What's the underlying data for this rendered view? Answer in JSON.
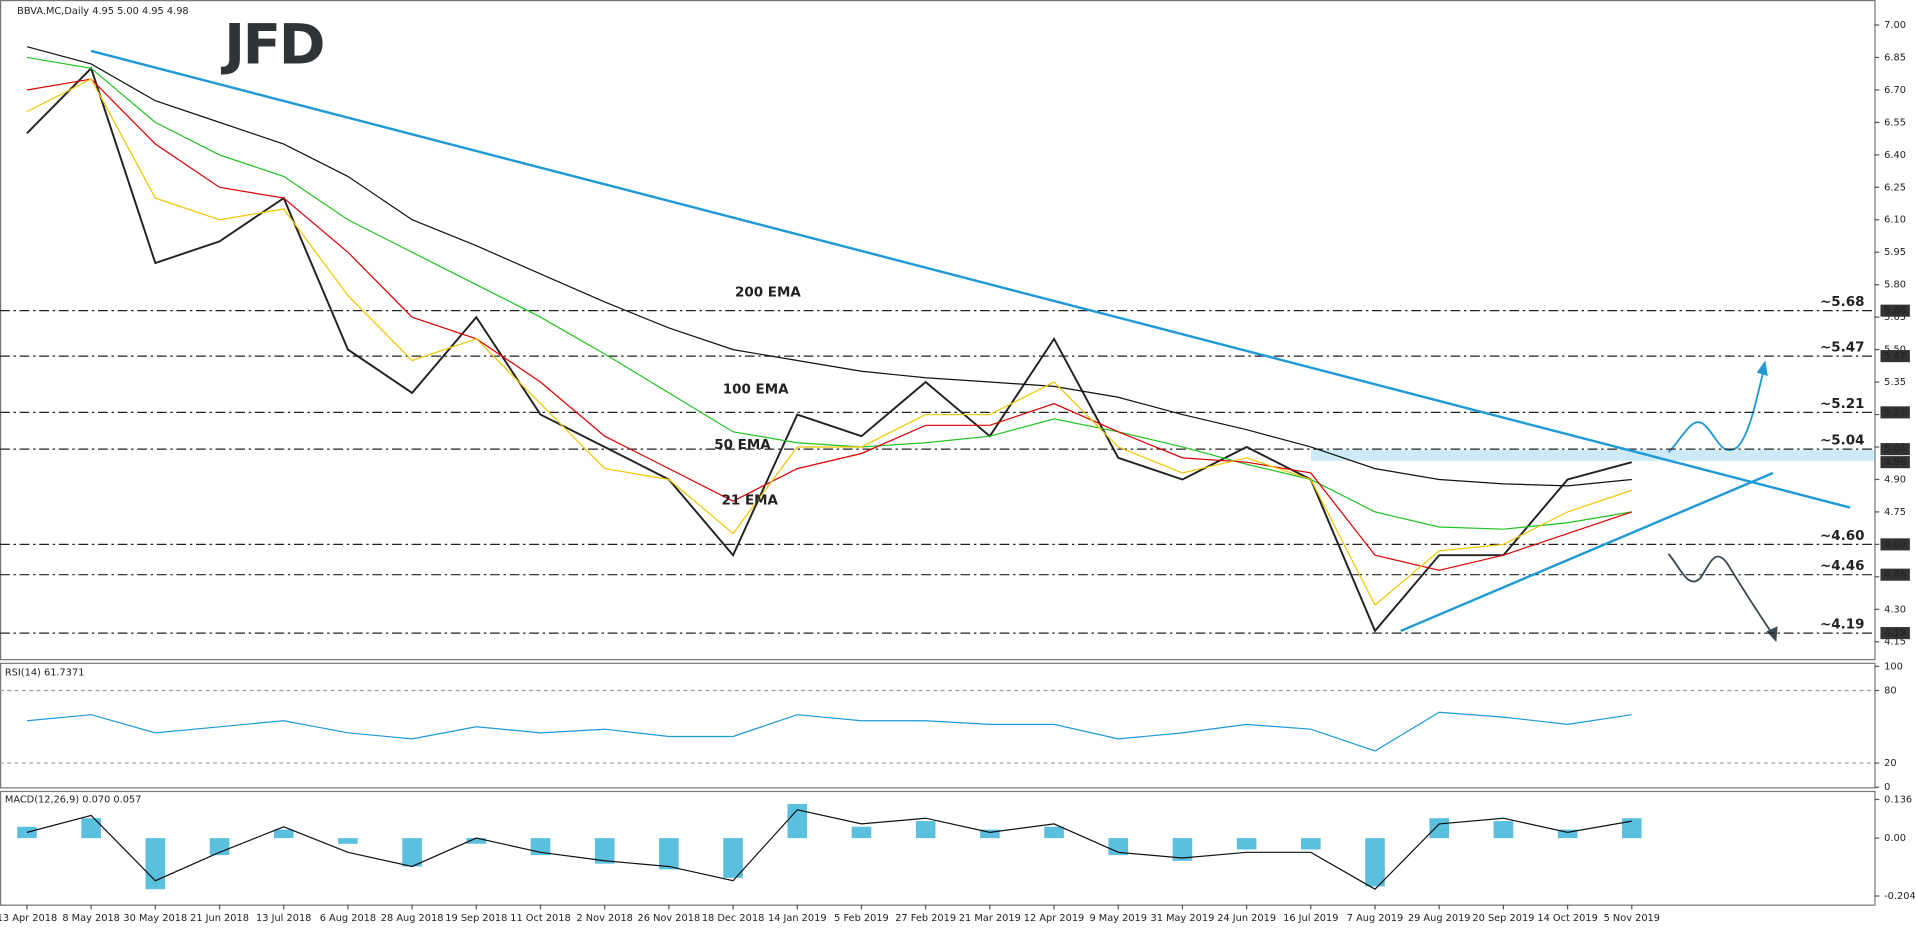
{
  "chart_data": [
    {
      "type": "line",
      "title": "BBVA.MC,Daily  4.95 5.00 4.95 4.98",
      "logo": "JFD",
      "categories": [
        "13 Apr 2018",
        "8 May 2018",
        "30 May 2018",
        "21 Jun 2018",
        "13 Jul 2018",
        "6 Aug 2018",
        "28 Aug 2018",
        "19 Sep 2018",
        "11 Oct 2018",
        "2 Nov 2018",
        "26 Nov 2018",
        "18 Dec 2018",
        "14 Jan 2019",
        "5 Feb 2019",
        "27 Feb 2019",
        "21 Mar 2019",
        "12 Apr 2019",
        "9 May 2019",
        "31 May 2019",
        "24 Jun 2019",
        "16 Jul 2019",
        "7 Aug 2019",
        "29 Aug 2019",
        "20 Sep 2019",
        "14 Oct 2019",
        "5 Nov 2019"
      ],
      "series": [
        {
          "color": "#222222",
          "values": [
            6.5,
            6.8,
            5.9,
            6.0,
            6.2,
            5.5,
            5.3,
            5.65,
            5.2,
            5.05,
            4.9,
            4.55,
            5.2,
            5.1,
            5.35,
            5.1,
            5.55,
            5.0,
            4.9,
            5.05,
            4.9,
            4.2,
            4.55,
            4.55,
            4.9,
            4.98
          ]
        },
        {
          "name": "200 EMA",
          "color": "#111111",
          "values": [
            6.9,
            6.82,
            6.65,
            6.55,
            6.45,
            6.3,
            6.1,
            5.98,
            5.85,
            5.72,
            5.6,
            5.5,
            5.45,
            5.4,
            5.37,
            5.35,
            5.33,
            5.28,
            5.2,
            5.13,
            5.05,
            4.95,
            4.9,
            4.88,
            4.87,
            4.9
          ]
        },
        {
          "name": "100 EMA",
          "color": "#22c322",
          "values": [
            6.85,
            6.8,
            6.55,
            6.4,
            6.3,
            6.1,
            5.95,
            5.8,
            5.65,
            5.48,
            5.3,
            5.12,
            5.07,
            5.05,
            5.07,
            5.1,
            5.18,
            5.12,
            5.05,
            4.97,
            4.9,
            4.75,
            4.68,
            4.67,
            4.7,
            4.75
          ]
        },
        {
          "name": "50 EMA",
          "color": "#e00000",
          "values": [
            6.7,
            6.75,
            6.45,
            6.25,
            6.2,
            5.95,
            5.65,
            5.55,
            5.35,
            5.1,
            4.95,
            4.8,
            4.95,
            5.02,
            5.15,
            5.15,
            5.25,
            5.12,
            5.0,
            4.98,
            4.93,
            4.55,
            4.48,
            4.55,
            4.65,
            4.75
          ]
        },
        {
          "name": "21 EMA",
          "color": "#f0c800",
          "values": [
            6.6,
            6.75,
            6.2,
            6.1,
            6.15,
            5.75,
            5.45,
            5.55,
            5.25,
            4.95,
            4.9,
            4.65,
            5.05,
            5.05,
            5.2,
            5.2,
            5.35,
            5.05,
            4.93,
            5.0,
            4.9,
            4.32,
            4.57,
            4.6,
            4.75,
            4.85
          ]
        }
      ],
      "ylim": [
        4.07,
        7.11
      ],
      "yticks": [
        {
          "value": 7.0,
          "label": "7.00"
        },
        {
          "value": 6.85,
          "label": "6.85"
        },
        {
          "value": 6.7,
          "label": "6.70"
        },
        {
          "value": 6.55,
          "label": "6.55"
        },
        {
          "value": 6.4,
          "label": "6.40"
        },
        {
          "value": 6.25,
          "label": "6.25"
        },
        {
          "value": 6.1,
          "label": "6.10"
        },
        {
          "value": 5.95,
          "label": "5.95"
        },
        {
          "value": 5.8,
          "label": "5.80"
        },
        {
          "value": 5.65,
          "label": "5.65"
        },
        {
          "value": 5.5,
          "label": "5.50"
        },
        {
          "value": 5.35,
          "label": "5.35"
        },
        {
          "value": 5.2,
          "label": "5.20"
        },
        {
          "value": 5.05,
          "label": "5.05"
        },
        {
          "value": 4.9,
          "label": "4.90"
        },
        {
          "value": 4.75,
          "label": "4.75"
        },
        {
          "value": 4.6,
          "label": "4.60"
        },
        {
          "value": 4.45,
          "label": "4.45"
        },
        {
          "value": 4.3,
          "label": "4.30"
        },
        {
          "value": 4.15,
          "label": "4.15"
        }
      ],
      "levels": [
        {
          "value": 5.68,
          "label": "~5.68",
          "tick_label": "5.68",
          "color": "#1e9ad6"
        },
        {
          "value": 5.47,
          "label": "~5.47",
          "tick_label": "5.47",
          "color": "#1e9ad6"
        },
        {
          "value": 5.21,
          "label": "~5.21",
          "tick_label": "5.21",
          "color": "#1e9ad6"
        },
        {
          "value": 5.04,
          "label": "~5.04",
          "tick_label": "5.04",
          "color": "#1e9ad6"
        },
        {
          "value": 4.6,
          "label": "~4.60",
          "tick_label": "4.60",
          "color": "#333333"
        },
        {
          "value": 4.46,
          "label": "~4.46",
          "tick_label": "4.46",
          "color": "#333333"
        },
        {
          "value": 4.19,
          "label": "~4.19",
          "tick_label": "4.19",
          "color": "#333333"
        }
      ],
      "last": {
        "value": 4.98,
        "label": "4.98"
      },
      "trendlines": [
        {
          "start": [
            1,
            6.88
          ],
          "end": [
            28.4,
            4.77
          ],
          "color": "#1e9ad6"
        },
        {
          "start": [
            21.4,
            4.2
          ],
          "end": [
            27.2,
            4.93
          ],
          "color": "#1e9ad6"
        }
      ]
    },
    {
      "type": "line",
      "title": "RSI(14) 61.7371",
      "series": [
        {
          "color": "#1e9ad6",
          "values": [
            55,
            60,
            45,
            50,
            55,
            45,
            40,
            50,
            45,
            48,
            42,
            42,
            60,
            55,
            55,
            52,
            52,
            40,
            45,
            52,
            48,
            30,
            62,
            58,
            52,
            60
          ]
        }
      ],
      "ylim": [
        0,
        100
      ],
      "yticks": [
        100,
        80,
        20,
        0
      ]
    },
    {
      "type": "bar",
      "title": "MACD(12,26,9) 0.070 0.057",
      "series": [
        {
          "type": "bar",
          "color": "#5bc0de",
          "values": [
            0.04,
            0.07,
            -0.18,
            -0.06,
            0.03,
            -0.02,
            -0.1,
            -0.02,
            -0.06,
            -0.09,
            -0.11,
            -0.14,
            0.12,
            0.04,
            0.06,
            0.03,
            0.04,
            -0.06,
            -0.08,
            -0.04,
            -0.04,
            -0.17,
            0.07,
            0.06,
            0.03,
            0.07
          ]
        },
        {
          "type": "line",
          "color": "#111111",
          "values": [
            0.02,
            0.08,
            -0.15,
            -0.05,
            0.04,
            -0.05,
            -0.1,
            0.0,
            -0.05,
            -0.08,
            -0.1,
            -0.15,
            0.1,
            0.05,
            0.07,
            0.02,
            0.05,
            -0.05,
            -0.07,
            -0.05,
            -0.05,
            -0.18,
            0.05,
            0.07,
            0.02,
            0.06
          ]
        }
      ],
      "ylim": [
        -0.234,
        0.162
      ],
      "yticks": [
        0.136,
        {
          "value": 0,
          "label": "0.00"
        },
        -0.204
      ]
    }
  ]
}
